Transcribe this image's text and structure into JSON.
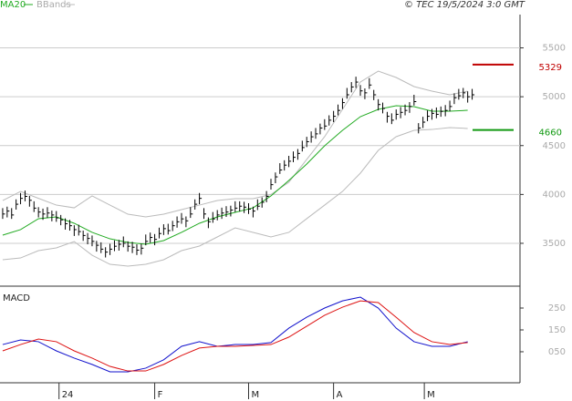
{
  "chart_data": [
    {
      "type": "ohlc",
      "credit": "© TEC 19/5/2024 3:0 GMT",
      "xlim": [
        -0.6,
        115.7
      ],
      "ylim": [
        3080,
        5990
      ],
      "yticks": [
        3500,
        4000,
        4500,
        5000,
        5500
      ],
      "grid": true,
      "bars": {
        "color": "#000000",
        "x": [
          0,
          1,
          2,
          3,
          4,
          5,
          6,
          7,
          8,
          9,
          10,
          11,
          12,
          13,
          14,
          15,
          16,
          17,
          18,
          19,
          20,
          21,
          22,
          23,
          24,
          25,
          26,
          27,
          28,
          29,
          30,
          31,
          32,
          33,
          34,
          35,
          36,
          37,
          38,
          39,
          40,
          41,
          42,
          43,
          44,
          45,
          46,
          47,
          48,
          49,
          50,
          51,
          52,
          53,
          54,
          55,
          56,
          57,
          58,
          59,
          60,
          61,
          62,
          63,
          64,
          65,
          66,
          67,
          68,
          69,
          70,
          71,
          72,
          73,
          74,
          75,
          76,
          77,
          78,
          79,
          80,
          81,
          82,
          83,
          84,
          85,
          86,
          87,
          88,
          89,
          90,
          91,
          92,
          93,
          94,
          95,
          96,
          97,
          98,
          99,
          100,
          101,
          102,
          103,
          104,
          105
        ],
        "high": [
          3860,
          3875,
          3860,
          3950,
          4015,
          4040,
          3985,
          3930,
          3870,
          3855,
          3870,
          3835,
          3830,
          3790,
          3755,
          3740,
          3685,
          3690,
          3630,
          3605,
          3580,
          3525,
          3510,
          3460,
          3495,
          3530,
          3535,
          3570,
          3520,
          3515,
          3490,
          3495,
          3590,
          3610,
          3595,
          3660,
          3695,
          3700,
          3730,
          3775,
          3810,
          3775,
          3870,
          3950,
          4015,
          3860,
          3765,
          3820,
          3840,
          3865,
          3880,
          3885,
          3930,
          3930,
          3925,
          3910,
          3875,
          3950,
          3970,
          4035,
          4160,
          4225,
          4320,
          4350,
          4395,
          4440,
          4465,
          4550,
          4590,
          4645,
          4680,
          4725,
          4770,
          4810,
          4855,
          4920,
          4985,
          5090,
          5150,
          5205,
          5120,
          5085,
          5190,
          5070,
          4975,
          4940,
          4845,
          4830,
          4870,
          4895,
          4920,
          4945,
          5020,
          4730,
          4795,
          4860,
          4875,
          4890,
          4900,
          4915,
          4960,
          5035,
          5080,
          5090,
          5055,
          5080
        ],
        "low": [
          3750,
          3765,
          3750,
          3845,
          3900,
          3930,
          3875,
          3820,
          3765,
          3740,
          3760,
          3725,
          3720,
          3685,
          3640,
          3630,
          3575,
          3580,
          3525,
          3490,
          3470,
          3415,
          3400,
          3355,
          3380,
          3420,
          3425,
          3460,
          3415,
          3400,
          3380,
          3385,
          3480,
          3505,
          3480,
          3550,
          3585,
          3590,
          3625,
          3660,
          3700,
          3665,
          3760,
          3845,
          3900,
          3750,
          3655,
          3710,
          3735,
          3750,
          3770,
          3775,
          3820,
          3825,
          3810,
          3800,
          3765,
          3840,
          3865,
          3920,
          4050,
          4115,
          4210,
          4245,
          4280,
          4330,
          4355,
          4440,
          4485,
          4530,
          4570,
          4615,
          4660,
          4705,
          4740,
          4810,
          4875,
          4980,
          5045,
          5090,
          5010,
          4975,
          5080,
          4965,
          4860,
          4830,
          4735,
          4720,
          4765,
          4780,
          4810,
          4835,
          4910,
          4625,
          4680,
          4750,
          4765,
          4780,
          4795,
          4800,
          4850,
          4925,
          4970,
          4985,
          4940,
          4970
        ],
        "close": [
          3800,
          3830,
          3790,
          3900,
          3960,
          3980,
          3940,
          3860,
          3820,
          3800,
          3810,
          3790,
          3760,
          3740,
          3700,
          3680,
          3640,
          3620,
          3580,
          3550,
          3520,
          3480,
          3440,
          3410,
          3440,
          3470,
          3490,
          3500,
          3470,
          3460,
          3430,
          3450,
          3520,
          3560,
          3540,
          3600,
          3650,
          3630,
          3680,
          3720,
          3750,
          3730,
          3800,
          3900,
          3960,
          3800,
          3720,
          3750,
          3790,
          3810,
          3820,
          3840,
          3860,
          3880,
          3870,
          3850,
          3830,
          3880,
          3920,
          3980,
          4100,
          4180,
          4250,
          4300,
          4340,
          4380,
          4420,
          4480,
          4540,
          4590,
          4620,
          4680,
          4700,
          4760,
          4800,
          4860,
          4940,
          5020,
          5100,
          5150,
          5060,
          5040,
          5120,
          5020,
          4920,
          4880,
          4800,
          4760,
          4820,
          4840,
          4860,
          4900,
          4950,
          4680,
          4740,
          4800,
          4830,
          4820,
          4850,
          4860,
          4900,
          4990,
          5010,
          5040,
          5000,
          5020
        ]
      },
      "line_x": [
        0,
        4,
        8,
        12,
        16,
        20,
        24,
        28,
        32,
        36,
        40,
        44,
        48,
        52,
        56,
        60,
        64,
        68,
        72,
        76,
        80,
        84,
        88,
        92,
        96,
        100,
        104
      ],
      "ma": {
        "name": "MA20",
        "color": "#22aa22",
        "values": [
          3584,
          3640,
          3752,
          3770,
          3705,
          3612,
          3546,
          3509,
          3490,
          3528,
          3612,
          3705,
          3770,
          3817,
          3863,
          3985,
          4143,
          4311,
          4498,
          4656,
          4796,
          4871,
          4908,
          4899,
          4852,
          4852,
          4861
        ]
      },
      "bands": {
        "name": "BBands",
        "color": "#bbbbbb",
        "upper": [
          3938,
          4031,
          3960,
          3891,
          3863,
          3985,
          3891,
          3798,
          3770,
          3798,
          3845,
          3891,
          3938,
          3957,
          3957,
          4000,
          4125,
          4358,
          4591,
          4871,
          5151,
          5262,
          5197,
          5104,
          5057,
          5020,
          5057
        ],
        "lower": [
          3332,
          3350,
          3425,
          3453,
          3518,
          3378,
          3285,
          3267,
          3285,
          3332,
          3425,
          3472,
          3565,
          3658,
          3612,
          3565,
          3612,
          3752,
          3891,
          4031,
          4218,
          4451,
          4591,
          4656,
          4665,
          4684,
          4675
        ]
      },
      "levels": [
        {
          "value": 5329,
          "color": "#c00000"
        },
        {
          "value": 4660,
          "color": "#119911"
        }
      ]
    },
    {
      "type": "line",
      "title": "MACD",
      "xlim": [
        -0.6,
        115.7
      ],
      "ylim": [
        -92,
        346
      ],
      "yticks": [
        250,
        150,
        {
          "value": 50,
          "label": "050"
        }
      ],
      "xticks": [
        {
          "value": 12.6,
          "label": "24"
        },
        {
          "value": 34,
          "label": "F"
        },
        {
          "value": 55,
          "label": "M"
        },
        {
          "value": 74,
          "label": "A"
        },
        {
          "value": 94.3,
          "label": "M"
        }
      ],
      "x": [
        0,
        4,
        8,
        12,
        16,
        20,
        24,
        28,
        32,
        36,
        40,
        44,
        48,
        52,
        56,
        60,
        64,
        68,
        72,
        76,
        80,
        84,
        88,
        92,
        96,
        100,
        104
      ],
      "series": [
        {
          "color": "#1111cc",
          "values": [
            83,
            104,
            96,
            54,
            21,
            -8,
            -42,
            -42,
            -25,
            13,
            75,
            96,
            75,
            83,
            83,
            92,
            158,
            208,
            250,
            283,
            300,
            250,
            158,
            96,
            75,
            75,
            96
          ]
        },
        {
          "color": "#dd1111",
          "values": [
            54,
            83,
            108,
            96,
            54,
            21,
            -17,
            -38,
            -38,
            -8,
            33,
            67,
            75,
            75,
            79,
            83,
            117,
            167,
            217,
            254,
            283,
            275,
            208,
            138,
            96,
            83,
            92
          ]
        }
      ]
    }
  ]
}
